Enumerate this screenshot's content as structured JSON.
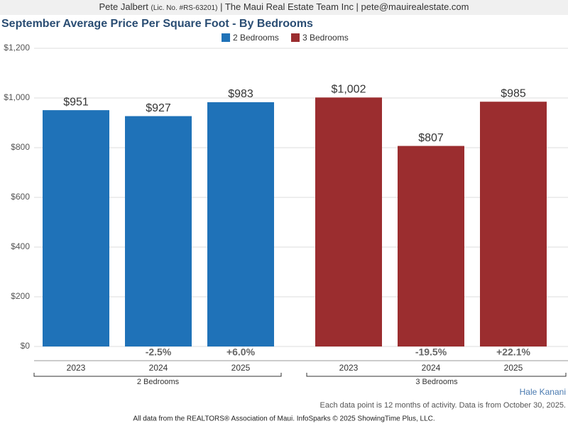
{
  "header": {
    "name": "Pete Jalbert",
    "license": "(Lic. No. #RS-63201)",
    "rest": "| The Maui Real Estate Team Inc | pete@mauirealestate.com"
  },
  "chart_data": {
    "type": "bar",
    "title": "September Average Price Per Square Foot - By Bedrooms",
    "categories": [
      "2023",
      "2024",
      "2025"
    ],
    "series": [
      {
        "name": "2 Bedrooms",
        "color": "#1f72b8",
        "values": [
          951,
          927,
          983
        ],
        "value_labels": [
          "$951",
          "$927",
          "$983"
        ],
        "change_labels": [
          null,
          "-2.5%",
          "+6.0%"
        ]
      },
      {
        "name": "3 Bedrooms",
        "color": "#9b2d2f",
        "values": [
          1002,
          807,
          985
        ],
        "value_labels": [
          "$1,002",
          "$807",
          "$985"
        ],
        "change_labels": [
          null,
          "-19.5%",
          "+22.1%"
        ]
      }
    ],
    "ylim": [
      0,
      1200
    ],
    "yticks": [
      {
        "value": 0,
        "label": "$0"
      },
      {
        "value": 200,
        "label": "$200"
      },
      {
        "value": 400,
        "label": "$400"
      },
      {
        "value": 600,
        "label": "$600"
      },
      {
        "value": 800,
        "label": "$800"
      },
      {
        "value": 1000,
        "label": "$1,000"
      },
      {
        "value": 1200,
        "label": "$1,200"
      }
    ],
    "grid": true,
    "legend": "top"
  },
  "footer": {
    "area": "Hale Kanani",
    "note": "Each data point is 12 months of activity. Data is from October 30, 2025.",
    "source": "All data from the REALTORS® Association of Maui. InfoSparks © 2025 ShowingTime Plus, LLC."
  }
}
